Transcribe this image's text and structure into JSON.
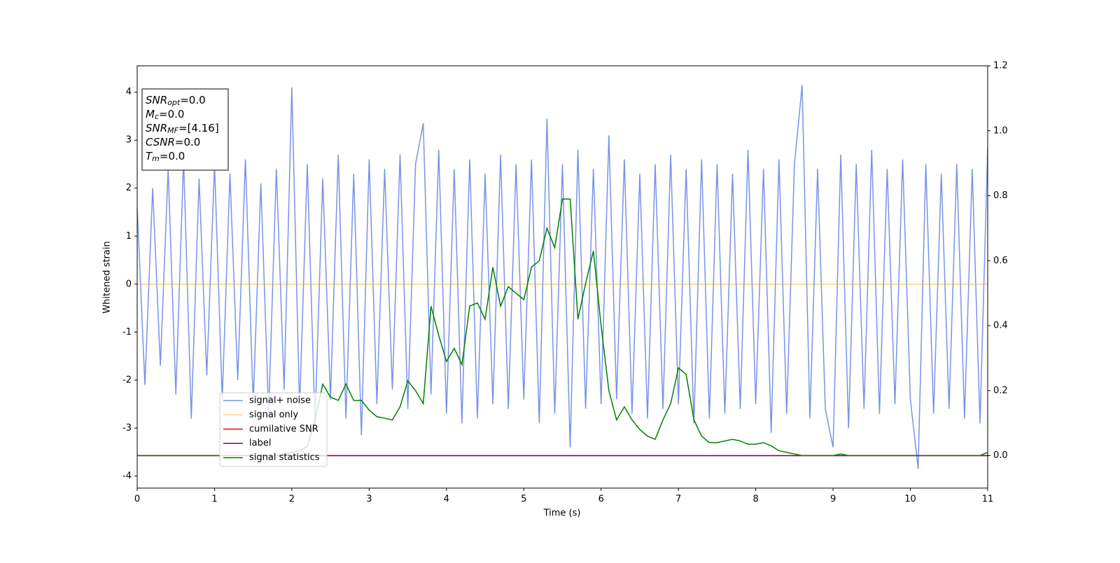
{
  "chart_data": {
    "type": "line",
    "xlabel": "Time (s)",
    "ylabel": "Whitened strain",
    "x": [
      0,
      0.1,
      0.2,
      0.3,
      0.4,
      0.5,
      0.6,
      0.7,
      0.8,
      0.9,
      1,
      1.1,
      1.2,
      1.3,
      1.4,
      1.5,
      1.6,
      1.7,
      1.8,
      1.9,
      2,
      2.1,
      2.2,
      2.3,
      2.4,
      2.5,
      2.6,
      2.7,
      2.8,
      2.9,
      3,
      3.1,
      3.2,
      3.3,
      3.4,
      3.5,
      3.6,
      3.7,
      3.8,
      3.9,
      4,
      4.1,
      4.2,
      4.3,
      4.4,
      4.5,
      4.6,
      4.7,
      4.8,
      4.9,
      5,
      5.1,
      5.2,
      5.3,
      5.4,
      5.5,
      5.6,
      5.7,
      5.8,
      5.9,
      6,
      6.1,
      6.2,
      6.3,
      6.4,
      6.5,
      6.6,
      6.7,
      6.8,
      6.9,
      7,
      7.1,
      7.2,
      7.3,
      7.4,
      7.5,
      7.6,
      7.7,
      7.8,
      7.9,
      8,
      8.1,
      8.2,
      8.3,
      8.4,
      8.5,
      8.6,
      8.7,
      8.8,
      8.9,
      9,
      9.1,
      9.2,
      9.3,
      9.4,
      9.5,
      9.6,
      9.7,
      9.8,
      9.9,
      10,
      10.1,
      10.2,
      10.3,
      10.4,
      10.5,
      10.6,
      10.7,
      10.8,
      10.9,
      11
    ],
    "xlim": [
      0,
      11
    ],
    "xticks": [
      0,
      1,
      2,
      3,
      4,
      5,
      6,
      7,
      8,
      9,
      10,
      11
    ],
    "ylim": [
      -4.25,
      4.55
    ],
    "yticks": [
      -4,
      -3,
      -2,
      -1,
      0,
      1,
      2,
      3,
      4
    ],
    "y2lim": [
      -0.1,
      1.2
    ],
    "y2ticks": [
      {
        "value": 0,
        "label": "0.0"
      },
      {
        "value": 0.2,
        "label": "0.2"
      },
      {
        "value": 0.4,
        "label": "0.4"
      },
      {
        "value": 0.6,
        "label": "0.6"
      },
      {
        "value": 0.8,
        "label": "0.8"
      },
      {
        "value": 1,
        "label": "1.0"
      },
      {
        "value": 1.2,
        "label": "1.2"
      }
    ],
    "legend": "lower left",
    "series": [
      {
        "name": "signal+ noise",
        "color": "#7893e6",
        "values": [
          1.6,
          -2.1,
          2.0,
          -1.7,
          2.4,
          -2.3,
          2.6,
          -2.8,
          2.2,
          -1.9,
          2.5,
          -2.4,
          2.3,
          -2.0,
          2.6,
          -2.5,
          2.1,
          -2.7,
          2.4,
          -2.2,
          4.1,
          -2.6,
          2.5,
          -2.9,
          2.2,
          -2.4,
          2.7,
          -2.8,
          2.3,
          -3.15,
          2.6,
          -2.5,
          2.4,
          -2.2,
          2.7,
          -2.6,
          2.5,
          3.35,
          -2.3,
          2.8,
          -2.7,
          2.4,
          -2.9,
          2.6,
          -2.8,
          2.3,
          -2.5,
          2.7,
          -2.6,
          2.5,
          -2.4,
          2.6,
          -2.9,
          3.45,
          -2.7,
          2.5,
          -3.4,
          2.8,
          -2.6,
          2.4,
          -2.5,
          3.1,
          -2.4,
          2.6,
          -2.7,
          2.3,
          -2.8,
          2.5,
          -2.6,
          2.7,
          -2.5,
          2.4,
          -2.9,
          2.6,
          -2.8,
          2.5,
          -2.7,
          2.3,
          -2.6,
          2.8,
          -2.5,
          2.4,
          -3.1,
          2.6,
          -2.7,
          2.5,
          4.15,
          -2.8,
          2.4,
          -2.6,
          -3.4,
          2.7,
          -3.0,
          2.5,
          -2.6,
          2.8,
          -2.7,
          2.4,
          -2.5,
          2.6,
          -2.4,
          -3.85,
          2.5,
          -2.7,
          2.3,
          -2.6,
          2.5,
          -2.8,
          2.4,
          -2.9,
          2.85
        ]
      },
      {
        "name": "signal only",
        "color": "#ffa500",
        "x": [
          0,
          11
        ],
        "values": [
          0,
          0
        ]
      },
      {
        "name": "cumilative SNR",
        "color": "#ff0000",
        "axis": "y2",
        "x": [
          0,
          11
        ],
        "values": [
          0,
          0
        ]
      },
      {
        "name": "label",
        "color": "#800080",
        "axis": "y2",
        "x": [
          0,
          11
        ],
        "values": [
          0,
          0
        ]
      },
      {
        "name": "signal statistics",
        "color": "#008000",
        "axis": "y2",
        "values": [
          0,
          0,
          0,
          0,
          0,
          0,
          0,
          0,
          0,
          0,
          0,
          0,
          0,
          0,
          0,
          0,
          0,
          0,
          0,
          0.005,
          0.01,
          0.015,
          0.028,
          0.11,
          0.22,
          0.18,
          0.17,
          0.22,
          0.17,
          0.17,
          0.14,
          0.12,
          0.115,
          0.11,
          0.15,
          0.23,
          0.2,
          0.16,
          0.46,
          0.37,
          0.29,
          0.33,
          0.28,
          0.46,
          0.47,
          0.42,
          0.58,
          0.46,
          0.52,
          0.5,
          0.48,
          0.58,
          0.6,
          0.7,
          0.64,
          0.79,
          0.79,
          0.42,
          0.53,
          0.63,
          0.4,
          0.2,
          0.11,
          0.15,
          0.11,
          0.08,
          0.06,
          0.05,
          0.11,
          0.16,
          0.27,
          0.25,
          0.11,
          0.06,
          0.04,
          0.04,
          0.045,
          0.05,
          0.045,
          0.035,
          0.035,
          0.04,
          0.03,
          0.015,
          0.01,
          0.005,
          0,
          0,
          0,
          0,
          0,
          0.005,
          0,
          0,
          0,
          0,
          0,
          0,
          0,
          0,
          0,
          0,
          0,
          0,
          0,
          0,
          0,
          0,
          0,
          0,
          0.01
        ]
      }
    ],
    "annotations": [
      {
        "base": "SNR",
        "sub": "opt",
        "rest": "=0.0"
      },
      {
        "base": "M",
        "sub": "c",
        "rest": "=0.0"
      },
      {
        "base": "SNR",
        "sub": "MF",
        "rest": "=[4.16]"
      },
      {
        "base": "CSNR",
        "rest": "=0.0"
      },
      {
        "base": "T",
        "sub": "m",
        "rest": "=0.0"
      }
    ]
  }
}
